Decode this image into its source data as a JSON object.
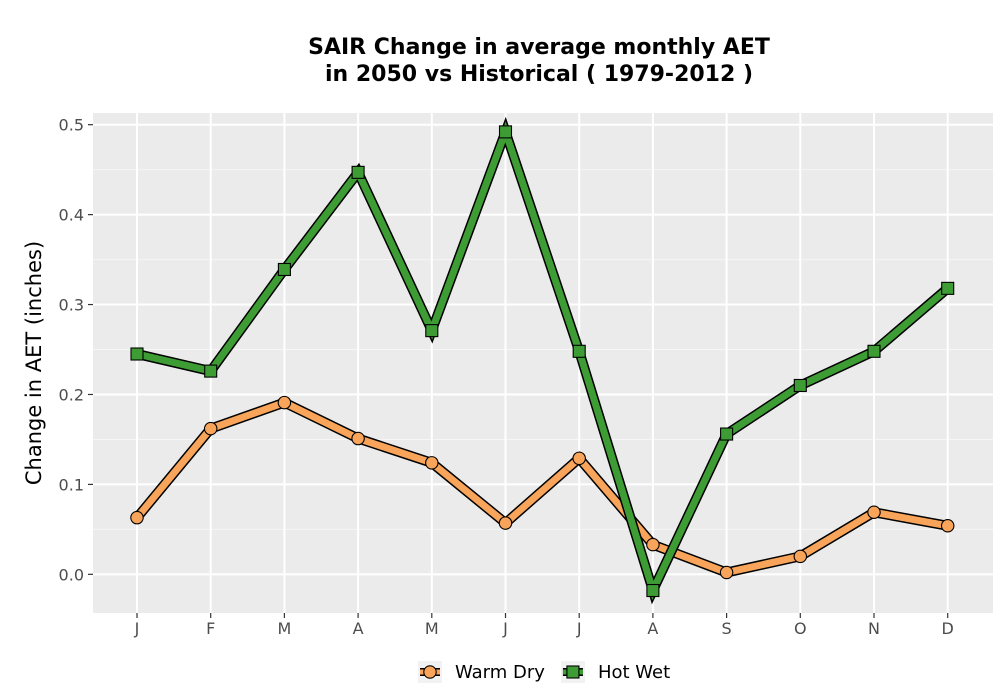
{
  "chart_data": {
    "type": "line",
    "title_lines": [
      "SAIR  Change in average monthly AET",
      "in 2050 vs Historical ( 1979-2012 )"
    ],
    "xlabel": "",
    "ylabel": "Change in AET (inches)",
    "categories": [
      "J",
      "F",
      "M",
      "A",
      "M",
      "J",
      "J",
      "A",
      "S",
      "O",
      "N",
      "D"
    ],
    "ylim": [
      -0.043,
      0.513
    ],
    "yticks": [
      0.0,
      0.1,
      0.2,
      0.3,
      0.4,
      0.5
    ],
    "ytick_labels": [
      "0.0",
      "0.1",
      "0.2",
      "0.3",
      "0.4",
      "0.5"
    ],
    "grid": true,
    "legend_position": "bottom",
    "series": [
      {
        "name": "Warm Dry",
        "color": "#F8A55B",
        "marker": "circle",
        "values": [
          0.063,
          0.162,
          0.191,
          0.151,
          0.124,
          0.057,
          0.129,
          0.033,
          0.002,
          0.02,
          0.069,
          0.054
        ]
      },
      {
        "name": "Hot Wet",
        "color": "#3E9C35",
        "marker": "square",
        "values": [
          0.245,
          0.226,
          0.339,
          0.447,
          0.271,
          0.492,
          0.248,
          -0.018,
          0.156,
          0.21,
          0.248,
          0.318
        ]
      }
    ]
  }
}
